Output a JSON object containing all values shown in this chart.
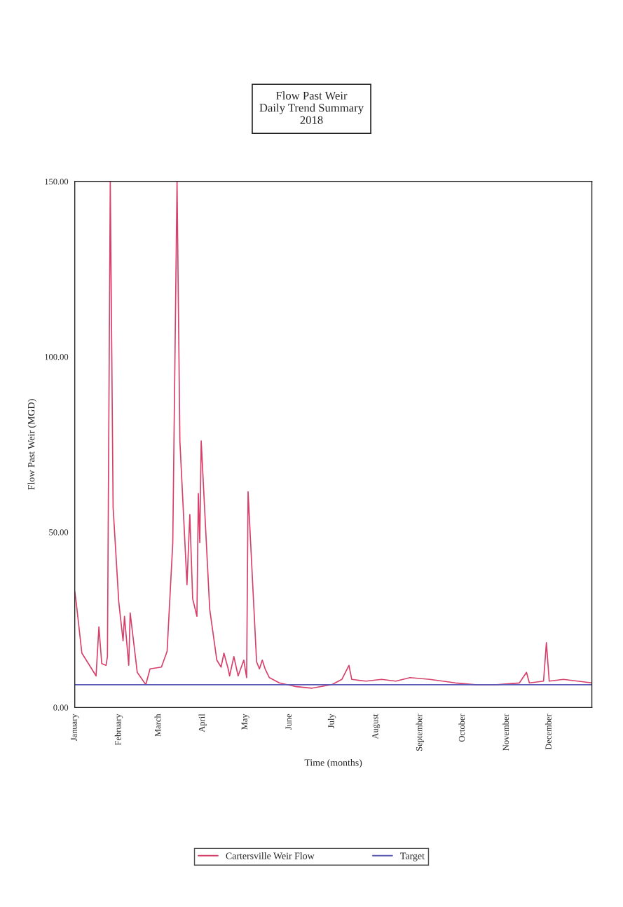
{
  "chart_data": {
    "type": "line",
    "title": "Flow Past Weir\nDaily Trend Summary\n2018",
    "xlabel": "Time (months)",
    "ylabel": "Flow Past Weir (MGD)",
    "xlim": [
      "2018-01-01",
      "2018-12-31"
    ],
    "xticks": [
      {
        "value": "2018-01-01",
        "label": "January"
      },
      {
        "value": "2018-02-01",
        "label": "February"
      },
      {
        "value": "2018-03-01",
        "label": "March"
      },
      {
        "value": "2018-04-01",
        "label": "April"
      },
      {
        "value": "2018-05-01",
        "label": "May"
      },
      {
        "value": "2018-06-01",
        "label": "June"
      },
      {
        "value": "2018-07-01",
        "label": "July"
      },
      {
        "value": "2018-08-01",
        "label": "August"
      },
      {
        "value": "2018-09-01",
        "label": "September"
      },
      {
        "value": "2018-10-01",
        "label": "October"
      },
      {
        "value": "2018-11-01",
        "label": "November"
      },
      {
        "value": "2018-12-01",
        "label": "December"
      }
    ],
    "ylim": [
      0,
      150
    ],
    "yticks": [
      {
        "value": 0,
        "label": "0.00"
      },
      {
        "value": 50,
        "label": "50.00"
      },
      {
        "value": 100,
        "label": "100.00"
      },
      {
        "value": 150,
        "label": "150.00"
      }
    ],
    "grid": false,
    "legend": "bottom",
    "marker": "none",
    "line_style": "solid",
    "series": [
      {
        "name": "Cartersville Weir Flow",
        "color": "#d6406a",
        "x": [
          "2018-01-01",
          "2018-01-02",
          "2018-01-06",
          "2018-01-16",
          "2018-01-18",
          "2018-01-20",
          "2018-01-23",
          "2018-01-24",
          "2018-01-26",
          "2018-01-28",
          "2018-02-01",
          "2018-02-04",
          "2018-02-05",
          "2018-02-08",
          "2018-02-09",
          "2018-02-14",
          "2018-02-20",
          "2018-02-23",
          "2018-03-03",
          "2018-03-07",
          "2018-03-11",
          "2018-03-14",
          "2018-03-16",
          "2018-03-21",
          "2018-03-23",
          "2018-03-25",
          "2018-03-28",
          "2018-03-29",
          "2018-03-30",
          "2018-03-31",
          "2018-04-06",
          "2018-04-11",
          "2018-04-14",
          "2018-04-16",
          "2018-04-19",
          "2018-04-20",
          "2018-04-23",
          "2018-04-26",
          "2018-04-30",
          "2018-05-02",
          "2018-05-03",
          "2018-05-09",
          "2018-05-11",
          "2018-05-13",
          "2018-05-15",
          "2018-05-18",
          "2018-05-25",
          "2018-06-05",
          "2018-06-17",
          "2018-07-01",
          "2018-07-08",
          "2018-07-13",
          "2018-07-15",
          "2018-07-25",
          "2018-08-05",
          "2018-08-15",
          "2018-08-25",
          "2018-09-08",
          "2018-09-26",
          "2018-10-10",
          "2018-10-25",
          "2018-11-10",
          "2018-11-15",
          "2018-11-17",
          "2018-11-27",
          "2018-11-29",
          "2018-12-01",
          "2018-12-11",
          "2018-12-31"
        ],
        "values": [
          33,
          30,
          15.5,
          9,
          23,
          12.5,
          12,
          14.5,
          150,
          57,
          30,
          19,
          26,
          12,
          27,
          10,
          6.5,
          11,
          11.5,
          16,
          47,
          150,
          76,
          35,
          55,
          31,
          26,
          61,
          47,
          76,
          28,
          13.5,
          11.5,
          15.5,
          11,
          9,
          14.5,
          9,
          13.5,
          8.5,
          61.5,
          13,
          11,
          13.5,
          11,
          8.5,
          7,
          6,
          5.5,
          6.5,
          8,
          12,
          8,
          7.5,
          8,
          7.5,
          8.5,
          8,
          7,
          6.5,
          6.5,
          7,
          10,
          7,
          7.5,
          18.5,
          7.5,
          8,
          7
        ]
      },
      {
        "name": "Target",
        "color": "#5a5ab4",
        "x": [
          "2018-01-01",
          "2018-12-31"
        ],
        "values": [
          6.5,
          6.5
        ]
      }
    ]
  }
}
